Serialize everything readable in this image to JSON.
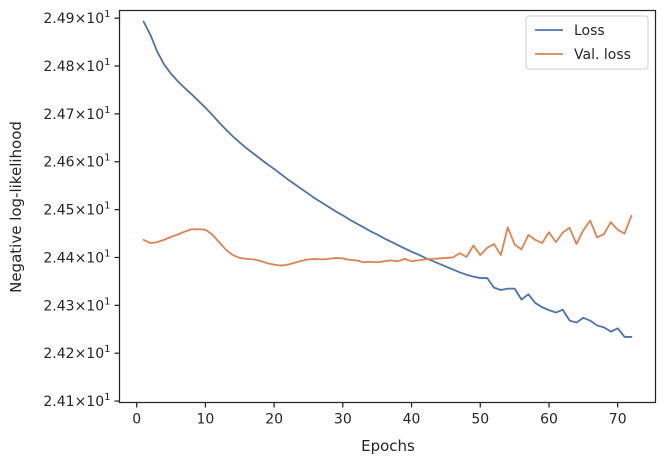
{
  "chart_data": {
    "type": "line",
    "xlabel": "Epochs",
    "ylabel": "Negative log-likelihood",
    "xlim": [
      -2.5,
      75.5
    ],
    "ylim": [
      24.097,
      24.916
    ],
    "x_ticks": [
      0,
      10,
      20,
      30,
      40,
      50,
      60,
      70
    ],
    "y_ticks": [
      {
        "value": 24.1,
        "mantissa": "2.41",
        "times": "×",
        "base": "10",
        "exponent": "1"
      },
      {
        "value": 24.2,
        "mantissa": "2.42",
        "times": "×",
        "base": "10",
        "exponent": "1"
      },
      {
        "value": 24.3,
        "mantissa": "2.43",
        "times": "×",
        "base": "10",
        "exponent": "1"
      },
      {
        "value": 24.4,
        "mantissa": "2.44",
        "times": "×",
        "base": "10",
        "exponent": "1"
      },
      {
        "value": 24.5,
        "mantissa": "2.45",
        "times": "×",
        "base": "10",
        "exponent": "1"
      },
      {
        "value": 24.6,
        "mantissa": "2.46",
        "times": "×",
        "base": "10",
        "exponent": "1"
      },
      {
        "value": 24.7,
        "mantissa": "2.47",
        "times": "×",
        "base": "10",
        "exponent": "1"
      },
      {
        "value": 24.8,
        "mantissa": "2.48",
        "times": "×",
        "base": "10",
        "exponent": "1"
      },
      {
        "value": 24.9,
        "mantissa": "2.49",
        "times": "×",
        "base": "10",
        "exponent": "1"
      }
    ],
    "grid": false,
    "legend_placement": "top-right",
    "x": [
      1,
      2,
      3,
      4,
      5,
      6,
      7,
      8,
      9,
      10,
      11,
      12,
      13,
      14,
      15,
      16,
      17,
      18,
      19,
      20,
      21,
      22,
      23,
      24,
      25,
      26,
      27,
      28,
      29,
      30,
      31,
      32,
      33,
      34,
      35,
      36,
      37,
      38,
      39,
      40,
      41,
      42,
      43,
      44,
      45,
      46,
      47,
      48,
      49,
      50,
      51,
      52,
      53,
      54,
      55,
      56,
      57,
      58,
      59,
      60,
      61,
      62,
      63,
      64,
      65,
      66,
      67,
      68,
      69,
      70,
      71,
      72
    ],
    "series": [
      {
        "name": "Loss",
        "color": "#4c72b0",
        "values": [
          24.893,
          24.865,
          24.83,
          24.803,
          24.784,
          24.768,
          24.754,
          24.741,
          24.727,
          24.713,
          24.698,
          24.682,
          24.667,
          24.653,
          24.64,
          24.628,
          24.617,
          24.606,
          24.595,
          24.585,
          24.574,
          24.563,
          24.553,
          24.543,
          24.533,
          24.523,
          24.514,
          24.505,
          24.496,
          24.488,
          24.479,
          24.471,
          24.463,
          24.455,
          24.448,
          24.44,
          24.433,
          24.426,
          24.419,
          24.412,
          24.406,
          24.399,
          24.393,
          24.387,
          24.381,
          24.375,
          24.369,
          24.364,
          24.36,
          24.357,
          24.357,
          24.337,
          24.332,
          24.335,
          24.335,
          24.312,
          24.323,
          24.305,
          24.296,
          24.29,
          24.285,
          24.291,
          24.268,
          24.264,
          24.274,
          24.268,
          24.258,
          24.254,
          24.245,
          24.252,
          24.234,
          24.234
        ]
      },
      {
        "name": "Val. loss",
        "color": "#dd8452",
        "values": [
          24.437,
          24.43,
          24.432,
          24.437,
          24.443,
          24.448,
          24.454,
          24.459,
          24.459,
          24.458,
          24.448,
          24.432,
          24.416,
          24.405,
          24.399,
          24.397,
          24.396,
          24.393,
          24.388,
          24.385,
          24.383,
          24.385,
          24.389,
          24.393,
          24.396,
          24.397,
          24.396,
          24.397,
          24.399,
          24.398,
          24.395,
          24.394,
          24.39,
          24.391,
          24.39,
          24.392,
          24.394,
          24.392,
          24.397,
          24.392,
          24.394,
          24.396,
          24.397,
          24.398,
          24.399,
          24.4,
          24.409,
          24.401,
          24.425,
          24.405,
          24.42,
          24.428,
          24.405,
          24.463,
          24.427,
          24.417,
          24.447,
          24.437,
          24.43,
          24.453,
          24.432,
          24.452,
          24.462,
          24.428,
          24.457,
          24.477,
          24.442,
          24.449,
          24.474,
          24.458,
          24.45,
          24.487
        ]
      }
    ]
  }
}
